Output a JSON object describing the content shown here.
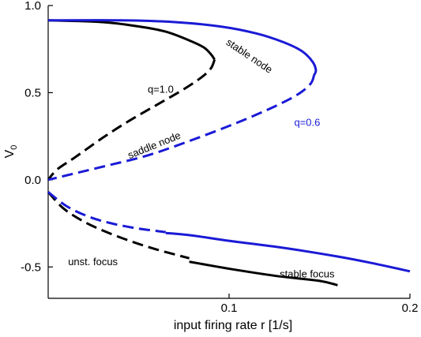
{
  "chart_data": {
    "type": "line",
    "xlabel": "input firing rate r [1/s]",
    "ylabel": "V",
    "ylabel_sub": "0",
    "xlim": [
      0.0,
      0.2
    ],
    "ylim": [
      -0.68,
      1.0
    ],
    "xticks": [
      {
        "value": 0.1,
        "label": "0.1"
      },
      {
        "value": 0.2,
        "label": "0.2"
      }
    ],
    "yticks": [
      {
        "value": 1.0,
        "label": "1.0"
      },
      {
        "value": 0.5,
        "label": "0.5"
      },
      {
        "value": 0.0,
        "label": "0.0"
      },
      {
        "value": -0.5,
        "label": "-0.5"
      }
    ],
    "grid": false,
    "colors": {
      "black": "#000000",
      "blue": "#1a1ad6"
    },
    "series": [
      {
        "group": "q=1.0",
        "color": "#000000",
        "style": "solid",
        "points": [
          [
            0.0,
            0.915
          ],
          [
            0.03,
            0.905
          ],
          [
            0.05,
            0.88
          ],
          [
            0.065,
            0.85
          ],
          [
            0.078,
            0.8
          ],
          [
            0.086,
            0.76
          ],
          [
            0.09,
            0.72
          ],
          [
            0.092,
            0.69
          ]
        ]
      },
      {
        "group": "q=1.0",
        "color": "#000000",
        "style": "dashed",
        "points": [
          [
            0.092,
            0.69
          ],
          [
            0.09,
            0.64
          ],
          [
            0.085,
            0.59
          ],
          [
            0.075,
            0.52
          ],
          [
            0.06,
            0.43
          ],
          [
            0.045,
            0.34
          ],
          [
            0.03,
            0.24
          ],
          [
            0.015,
            0.13
          ],
          [
            0.005,
            0.06
          ],
          [
            0.0,
            0.0
          ]
        ]
      },
      {
        "group": "q=0.6",
        "color": "#1a1ad6",
        "style": "solid",
        "points": [
          [
            0.0,
            0.915
          ],
          [
            0.04,
            0.915
          ],
          [
            0.07,
            0.905
          ],
          [
            0.095,
            0.88
          ],
          [
            0.115,
            0.84
          ],
          [
            0.13,
            0.79
          ],
          [
            0.14,
            0.74
          ],
          [
            0.146,
            0.68
          ],
          [
            0.148,
            0.63
          ],
          [
            0.147,
            0.6
          ]
        ]
      },
      {
        "group": "q=0.6",
        "color": "#1a1ad6",
        "style": "dashed",
        "points": [
          [
            0.147,
            0.6
          ],
          [
            0.145,
            0.55
          ],
          [
            0.138,
            0.49
          ],
          [
            0.125,
            0.42
          ],
          [
            0.105,
            0.33
          ],
          [
            0.08,
            0.23
          ],
          [
            0.055,
            0.14
          ],
          [
            0.03,
            0.075
          ],
          [
            0.012,
            0.03
          ],
          [
            0.0,
            0.0
          ]
        ]
      },
      {
        "group": "q=1.0",
        "color": "#000000",
        "style": "dashed",
        "points": [
          [
            0.0,
            -0.07
          ],
          [
            0.008,
            -0.16
          ],
          [
            0.018,
            -0.23
          ],
          [
            0.03,
            -0.29
          ],
          [
            0.045,
            -0.35
          ],
          [
            0.06,
            -0.4
          ],
          [
            0.078,
            -0.45
          ]
        ]
      },
      {
        "group": "q=1.0",
        "color": "#000000",
        "style": "solid",
        "points": [
          [
            0.078,
            -0.47
          ],
          [
            0.1,
            -0.51
          ],
          [
            0.125,
            -0.55
          ],
          [
            0.15,
            -0.58
          ],
          [
            0.16,
            -0.605
          ]
        ]
      },
      {
        "group": "q=0.6",
        "color": "#1a1ad6",
        "style": "dashed",
        "points": [
          [
            0.0,
            -0.07
          ],
          [
            0.01,
            -0.15
          ],
          [
            0.022,
            -0.21
          ],
          [
            0.035,
            -0.25
          ],
          [
            0.05,
            -0.28
          ],
          [
            0.065,
            -0.3
          ]
        ]
      },
      {
        "group": "q=0.6",
        "color": "#1a1ad6",
        "style": "solid",
        "points": [
          [
            0.065,
            -0.305
          ],
          [
            0.08,
            -0.32
          ],
          [
            0.1,
            -0.35
          ],
          [
            0.13,
            -0.39
          ],
          [
            0.16,
            -0.44
          ],
          [
            0.18,
            -0.48
          ],
          [
            0.2,
            -0.525
          ]
        ]
      }
    ],
    "annotations": [
      {
        "text": "stable node",
        "x": 0.098,
        "y": 0.78,
        "rotate": 34,
        "color": "#000000"
      },
      {
        "text": "q=1.0",
        "x": 0.055,
        "y": 0.5,
        "rotate": 0,
        "color": "#000000"
      },
      {
        "text": "q=0.6",
        "x": 0.136,
        "y": 0.31,
        "rotate": 0,
        "color": "#1a1ad6"
      },
      {
        "text": "saddle node",
        "x": 0.045,
        "y": 0.12,
        "rotate": -22,
        "color": "#000000"
      },
      {
        "text": "unst. focus",
        "x": 0.011,
        "y": -0.49,
        "rotate": 0,
        "color": "#000000"
      },
      {
        "text": "stable focus",
        "x": 0.128,
        "y": -0.56,
        "rotate": 0,
        "color": "#000000"
      }
    ]
  }
}
